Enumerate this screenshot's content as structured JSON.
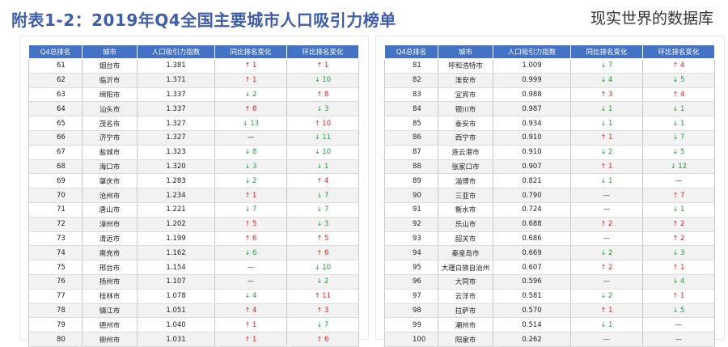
{
  "title": "附表1-2：2019年Q4全国主要城市人口吸引力榜单",
  "brand": "现实世界的数据库",
  "colors": {
    "header_bg": "#4472c4",
    "up": "#e02020",
    "down": "#1e9c3a",
    "title": "#3d5da8"
  },
  "headers": [
    "Q4总排名",
    "城市",
    "人口吸引力指数",
    "同比排名变化",
    "环比排名变化"
  ],
  "left_rows": [
    {
      "rank": "61",
      "city": "烟台市",
      "index": "1.381",
      "yoy": {
        "dir": "up",
        "val": "1"
      },
      "qoq": {
        "dir": "up",
        "val": "1"
      }
    },
    {
      "rank": "62",
      "city": "临沂市",
      "index": "1.371",
      "yoy": {
        "dir": "up",
        "val": "1"
      },
      "qoq": {
        "dir": "down",
        "val": "10"
      }
    },
    {
      "rank": "63",
      "city": "绵阳市",
      "index": "1.337",
      "yoy": {
        "dir": "down",
        "val": "2"
      },
      "qoq": {
        "dir": "up",
        "val": "8"
      }
    },
    {
      "rank": "64",
      "city": "汕头市",
      "index": "1.337",
      "yoy": {
        "dir": "up",
        "val": "8"
      },
      "qoq": {
        "dir": "down",
        "val": "3"
      }
    },
    {
      "rank": "65",
      "city": "茂名市",
      "index": "1.327",
      "yoy": {
        "dir": "down",
        "val": "13"
      },
      "qoq": {
        "dir": "up",
        "val": "10"
      }
    },
    {
      "rank": "66",
      "city": "济宁市",
      "index": "1.327",
      "yoy": {
        "dir": "flat",
        "val": "—"
      },
      "qoq": {
        "dir": "down",
        "val": "11"
      }
    },
    {
      "rank": "67",
      "city": "盐城市",
      "index": "1.323",
      "yoy": {
        "dir": "down",
        "val": "8"
      },
      "qoq": {
        "dir": "down",
        "val": "10"
      }
    },
    {
      "rank": "68",
      "city": "海口市",
      "index": "1.320",
      "yoy": {
        "dir": "down",
        "val": "3"
      },
      "qoq": {
        "dir": "down",
        "val": "1"
      }
    },
    {
      "rank": "69",
      "city": "肇庆市",
      "index": "1.283",
      "yoy": {
        "dir": "down",
        "val": "2"
      },
      "qoq": {
        "dir": "up",
        "val": "4"
      }
    },
    {
      "rank": "70",
      "city": "沧州市",
      "index": "1.234",
      "yoy": {
        "dir": "up",
        "val": "1"
      },
      "qoq": {
        "dir": "down",
        "val": "7"
      }
    },
    {
      "rank": "71",
      "city": "唐山市",
      "index": "1.221",
      "yoy": {
        "dir": "down",
        "val": "7"
      },
      "qoq": {
        "dir": "down",
        "val": "7"
      }
    },
    {
      "rank": "72",
      "city": "漳州市",
      "index": "1.202",
      "yoy": {
        "dir": "up",
        "val": "5"
      },
      "qoq": {
        "dir": "down",
        "val": "3"
      }
    },
    {
      "rank": "73",
      "city": "清远市",
      "index": "1.199",
      "yoy": {
        "dir": "up",
        "val": "6"
      },
      "qoq": {
        "dir": "up",
        "val": "5"
      }
    },
    {
      "rank": "74",
      "city": "南充市",
      "index": "1.162",
      "yoy": {
        "dir": "down",
        "val": "6"
      },
      "qoq": {
        "dir": "up",
        "val": "6"
      }
    },
    {
      "rank": "75",
      "city": "邢台市",
      "index": "1.154",
      "yoy": {
        "dir": "flat",
        "val": "—"
      },
      "qoq": {
        "dir": "down",
        "val": "10"
      }
    },
    {
      "rank": "76",
      "city": "扬州市",
      "index": "1.107",
      "yoy": {
        "dir": "flat",
        "val": "—"
      },
      "qoq": {
        "dir": "down",
        "val": "2"
      }
    },
    {
      "rank": "77",
      "city": "桂林市",
      "index": "1.078",
      "yoy": {
        "dir": "down",
        "val": "4"
      },
      "qoq": {
        "dir": "up",
        "val": "11"
      }
    },
    {
      "rank": "78",
      "city": "镇江市",
      "index": "1.051",
      "yoy": {
        "dir": "up",
        "val": "4"
      },
      "qoq": {
        "dir": "up",
        "val": "3"
      }
    },
    {
      "rank": "79",
      "city": "德州市",
      "index": "1.040",
      "yoy": {
        "dir": "up",
        "val": "1"
      },
      "qoq": {
        "dir": "down",
        "val": "7"
      }
    },
    {
      "rank": "80",
      "city": "柳州市",
      "index": "1.031",
      "yoy": {
        "dir": "up",
        "val": "1"
      },
      "qoq": {
        "dir": "up",
        "val": "6"
      }
    }
  ],
  "right_rows": [
    {
      "rank": "81",
      "city": "呼和浩特市",
      "index": "1.009",
      "yoy": {
        "dir": "down",
        "val": "7"
      },
      "qoq": {
        "dir": "up",
        "val": "4"
      }
    },
    {
      "rank": "82",
      "city": "淮安市",
      "index": "0.999",
      "yoy": {
        "dir": "down",
        "val": "4"
      },
      "qoq": {
        "dir": "down",
        "val": "5"
      }
    },
    {
      "rank": "83",
      "city": "宜宾市",
      "index": "0.988",
      "yoy": {
        "dir": "up",
        "val": "3"
      },
      "qoq": {
        "dir": "up",
        "val": "4"
      }
    },
    {
      "rank": "84",
      "city": "银川市",
      "index": "0.987",
      "yoy": {
        "dir": "down",
        "val": "1"
      },
      "qoq": {
        "dir": "down",
        "val": "1"
      }
    },
    {
      "rank": "85",
      "city": "泰安市",
      "index": "0.934",
      "yoy": {
        "dir": "down",
        "val": "1"
      },
      "qoq": {
        "dir": "down",
        "val": "1"
      }
    },
    {
      "rank": "86",
      "city": "西宁市",
      "index": "0.910",
      "yoy": {
        "dir": "up",
        "val": "1"
      },
      "qoq": {
        "dir": "down",
        "val": "7"
      }
    },
    {
      "rank": "87",
      "city": "连云港市",
      "index": "0.910",
      "yoy": {
        "dir": "down",
        "val": "2"
      },
      "qoq": {
        "dir": "down",
        "val": "5"
      }
    },
    {
      "rank": "88",
      "city": "张家口市",
      "index": "0.907",
      "yoy": {
        "dir": "up",
        "val": "1"
      },
      "qoq": {
        "dir": "down",
        "val": "12"
      }
    },
    {
      "rank": "89",
      "city": "淄博市",
      "index": "0.821",
      "yoy": {
        "dir": "down",
        "val": "1"
      },
      "qoq": {
        "dir": "flat",
        "val": "—"
      }
    },
    {
      "rank": "90",
      "city": "三亚市",
      "index": "0.790",
      "yoy": {
        "dir": "flat",
        "val": "—"
      },
      "qoq": {
        "dir": "up",
        "val": "7"
      }
    },
    {
      "rank": "91",
      "city": "衡水市",
      "index": "0.724",
      "yoy": {
        "dir": "flat",
        "val": "—"
      },
      "qoq": {
        "dir": "down",
        "val": "1"
      }
    },
    {
      "rank": "92",
      "city": "乐山市",
      "index": "0.688",
      "yoy": {
        "dir": "up",
        "val": "2"
      },
      "qoq": {
        "dir": "up",
        "val": "2"
      }
    },
    {
      "rank": "93",
      "city": "韶关市",
      "index": "0.686",
      "yoy": {
        "dir": "flat",
        "val": "—"
      },
      "qoq": {
        "dir": "up",
        "val": "2"
      }
    },
    {
      "rank": "94",
      "city": "秦皇岛市",
      "index": "0.669",
      "yoy": {
        "dir": "down",
        "val": "2"
      },
      "qoq": {
        "dir": "down",
        "val": "3"
      }
    },
    {
      "rank": "95",
      "city": "大理白族自治州",
      "index": "0.607",
      "yoy": {
        "dir": "up",
        "val": "2"
      },
      "qoq": {
        "dir": "up",
        "val": "1"
      }
    },
    {
      "rank": "96",
      "city": "大同市",
      "index": "0.596",
      "yoy": {
        "dir": "flat",
        "val": "—"
      },
      "qoq": {
        "dir": "down",
        "val": "4"
      }
    },
    {
      "rank": "97",
      "city": "云浮市",
      "index": "0.581",
      "yoy": {
        "dir": "down",
        "val": "2"
      },
      "qoq": {
        "dir": "up",
        "val": "1"
      }
    },
    {
      "rank": "98",
      "city": "拉萨市",
      "index": "0.570",
      "yoy": {
        "dir": "up",
        "val": "1"
      },
      "qoq": {
        "dir": "down",
        "val": "5"
      }
    },
    {
      "rank": "99",
      "city": "潮州市",
      "index": "0.514",
      "yoy": {
        "dir": "down",
        "val": "1"
      },
      "qoq": {
        "dir": "flat",
        "val": "—"
      }
    },
    {
      "rank": "100",
      "city": "阳泉市",
      "index": "0.262",
      "yoy": {
        "dir": "flat",
        "val": "—"
      },
      "qoq": {
        "dir": "flat",
        "val": "—"
      }
    }
  ]
}
